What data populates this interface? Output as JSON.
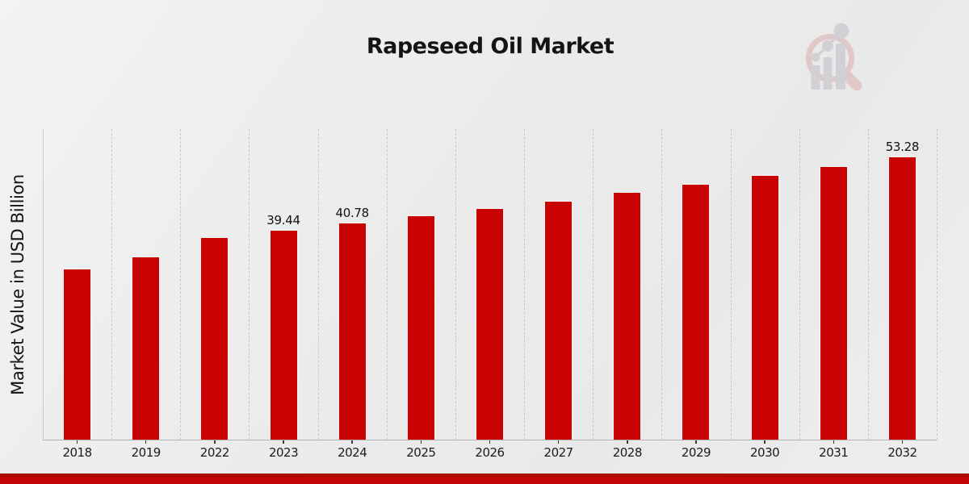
{
  "header": {
    "title": "Rapeseed Oil Market"
  },
  "watermark": {
    "icon": "magnifier-bar-chart-logo-icon",
    "ring_color": "#d9a8a8",
    "bars_color": "#b9b9c2"
  },
  "footer": {
    "strip_color_top": "#9c0808",
    "strip_color_main": "#c40404"
  },
  "chart_data": {
    "type": "bar",
    "title": "Rapeseed Oil Market",
    "xlabel": "",
    "ylabel": "Market Value in USD Billion",
    "categories": [
      "2018",
      "2019",
      "2022",
      "2023",
      "2024",
      "2025",
      "2026",
      "2027",
      "2028",
      "2029",
      "2030",
      "2031",
      "2032"
    ],
    "values": [
      32.2,
      34.5,
      38.1,
      39.44,
      40.78,
      42.1,
      43.6,
      44.9,
      46.6,
      48.1,
      49.8,
      51.4,
      53.28
    ],
    "data_labels": [
      "",
      "",
      "",
      "39.44",
      "40.78",
      "",
      "",
      "",
      "",
      "",
      "",
      "",
      "53.28"
    ],
    "bar_color": "#c90303",
    "ylim": [
      0,
      58.4
    ],
    "grid": "vertical-dashed-between-categories",
    "legend": "none",
    "units": "USD Billion"
  }
}
